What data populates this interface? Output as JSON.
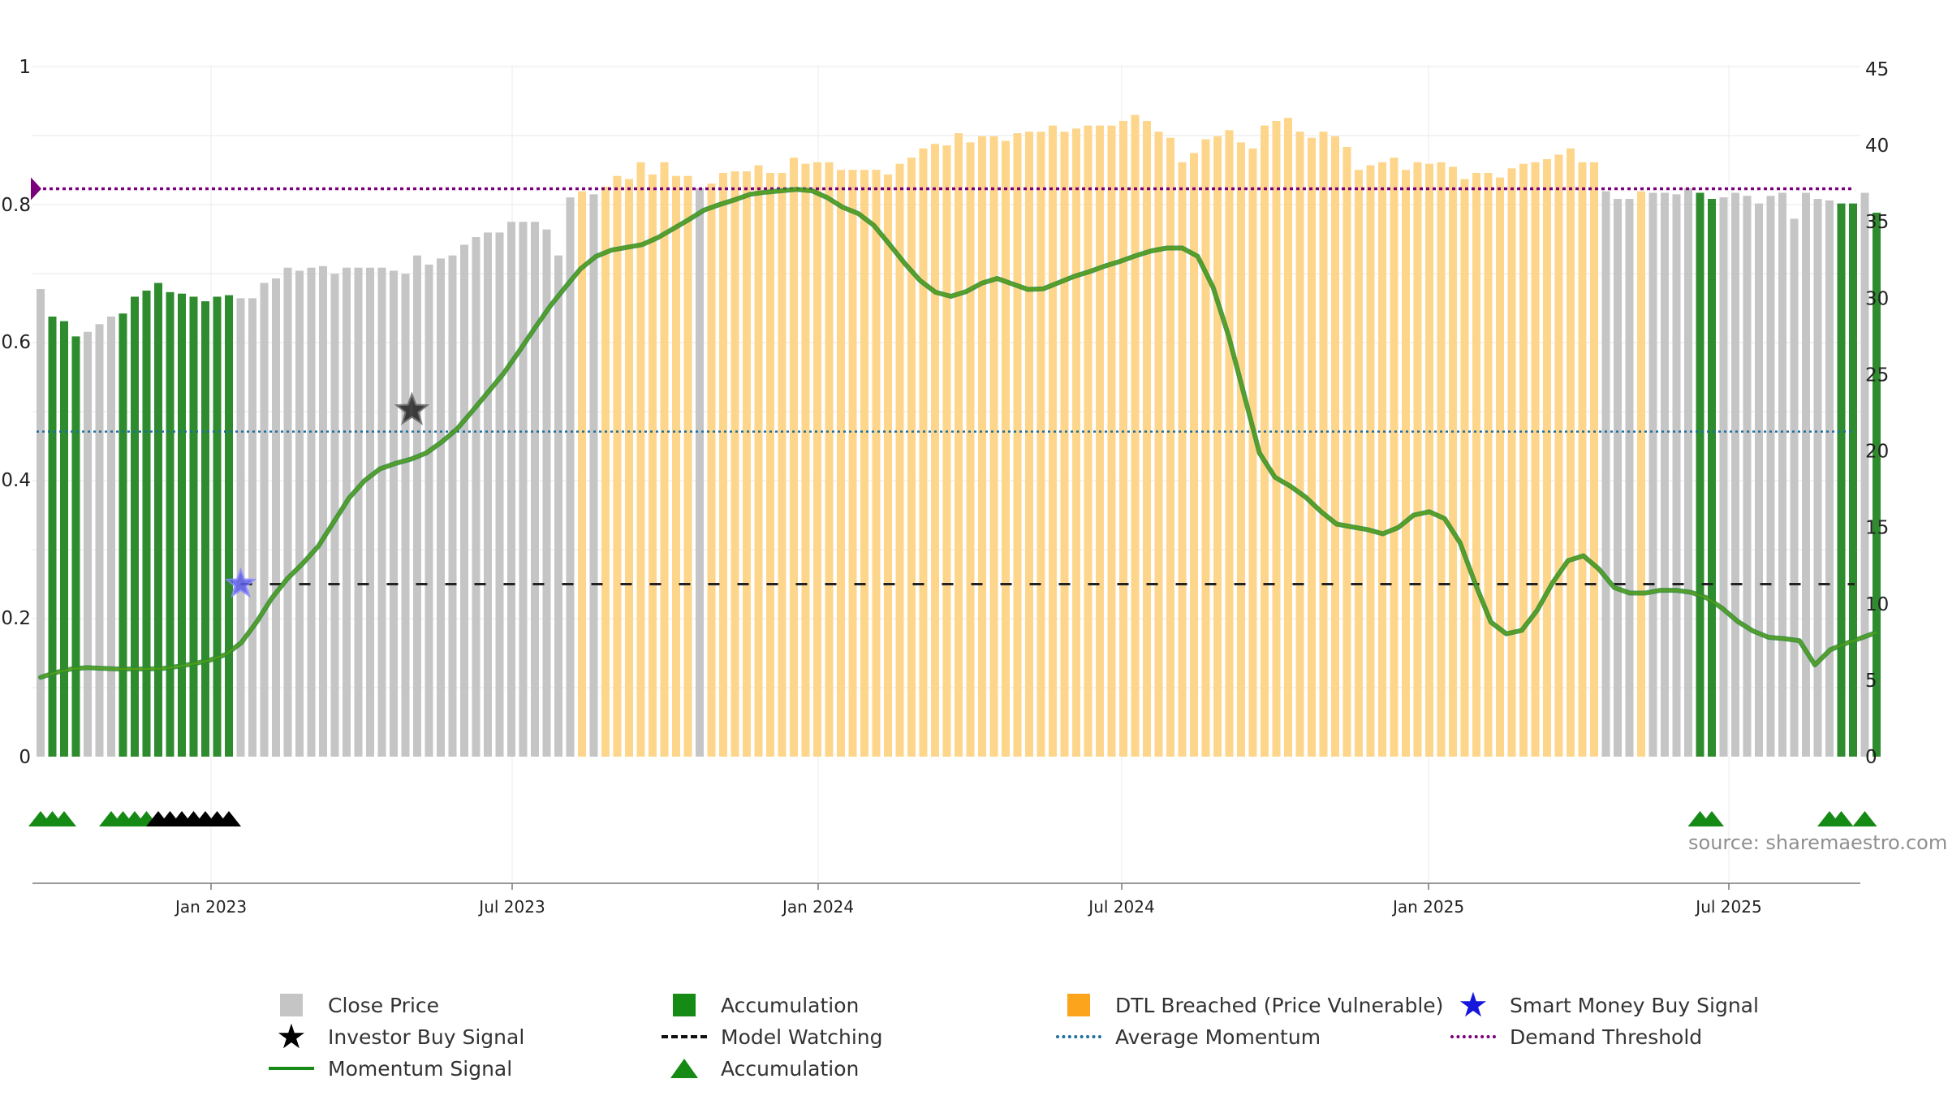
{
  "chart_data": {
    "type": "bar",
    "title": "",
    "source": "source: sharemaestro.com",
    "left_axis": {
      "ticks": [
        "1",
        "0.8",
        "0.6",
        "0.4",
        "0.2",
        "0"
      ],
      "range": [
        0,
        1
      ]
    },
    "right_axis": {
      "ticks": [
        "45",
        "40",
        "35",
        "30",
        "25",
        "20",
        "15",
        "10",
        "5",
        "0"
      ],
      "range": [
        0,
        45
      ]
    },
    "x_axis": {
      "ticks": [
        "Jan 2023",
        "Jul 2023",
        "Jan 2024",
        "Jul 2024",
        "Jan 2025",
        "Jul 2025"
      ]
    },
    "bar_colors": {
      "C": "#c5c5c5",
      "A": "#2e8b2e",
      "D": "#fdd68c"
    },
    "price_series": [
      [
        30.6,
        "C"
      ],
      [
        28.8,
        "A"
      ],
      [
        28.5,
        "A"
      ],
      [
        27.5,
        "A"
      ],
      [
        27.8,
        "C"
      ],
      [
        28.3,
        "C"
      ],
      [
        28.8,
        "C"
      ],
      [
        29,
        "A"
      ],
      [
        30.1,
        "A"
      ],
      [
        30.5,
        "A"
      ],
      [
        31,
        "A"
      ],
      [
        30.4,
        "A"
      ],
      [
        30.3,
        "A"
      ],
      [
        30.1,
        "A"
      ],
      [
        29.8,
        "A"
      ],
      [
        30.1,
        "A"
      ],
      [
        30.2,
        "A"
      ],
      [
        30,
        "C"
      ],
      [
        30,
        "C"
      ],
      [
        31,
        "C"
      ],
      [
        31.3,
        "C"
      ],
      [
        32,
        "C"
      ],
      [
        31.8,
        "C"
      ],
      [
        32,
        "C"
      ],
      [
        32.1,
        "C"
      ],
      [
        31.6,
        "C"
      ],
      [
        32,
        "C"
      ],
      [
        32,
        "C"
      ],
      [
        32,
        "C"
      ],
      [
        32,
        "C"
      ],
      [
        31.8,
        "C"
      ],
      [
        31.6,
        "C"
      ],
      [
        32.8,
        "C"
      ],
      [
        32.2,
        "C"
      ],
      [
        32.6,
        "C"
      ],
      [
        32.8,
        "C"
      ],
      [
        33.5,
        "C"
      ],
      [
        34,
        "C"
      ],
      [
        34.3,
        "C"
      ],
      [
        34.3,
        "C"
      ],
      [
        35,
        "C"
      ],
      [
        35,
        "C"
      ],
      [
        35,
        "C"
      ],
      [
        34.5,
        "C"
      ],
      [
        32.8,
        "C"
      ],
      [
        36.6,
        "C"
      ],
      [
        37,
        "D"
      ],
      [
        36.8,
        "C"
      ],
      [
        37.3,
        "D"
      ],
      [
        38,
        "D"
      ],
      [
        37.8,
        "D"
      ],
      [
        38.9,
        "D"
      ],
      [
        38.1,
        "D"
      ],
      [
        38.9,
        "D"
      ],
      [
        38,
        "D"
      ],
      [
        38,
        "D"
      ],
      [
        37.2,
        "C"
      ],
      [
        37.5,
        "D"
      ],
      [
        38.2,
        "D"
      ],
      [
        38.3,
        "D"
      ],
      [
        38.3,
        "D"
      ],
      [
        38.7,
        "D"
      ],
      [
        38.2,
        "D"
      ],
      [
        38.2,
        "D"
      ],
      [
        39.2,
        "D"
      ],
      [
        38.8,
        "D"
      ],
      [
        38.9,
        "D"
      ],
      [
        38.9,
        "D"
      ],
      [
        38.4,
        "D"
      ],
      [
        38.4,
        "D"
      ],
      [
        38.4,
        "D"
      ],
      [
        38.4,
        "D"
      ],
      [
        38.1,
        "D"
      ],
      [
        38.8,
        "D"
      ],
      [
        39.2,
        "D"
      ],
      [
        39.8,
        "D"
      ],
      [
        40.1,
        "D"
      ],
      [
        40,
        "D"
      ],
      [
        40.8,
        "D"
      ],
      [
        40.2,
        "D"
      ],
      [
        40.6,
        "D"
      ],
      [
        40.6,
        "D"
      ],
      [
        40.3,
        "D"
      ],
      [
        40.8,
        "D"
      ],
      [
        40.9,
        "D"
      ],
      [
        40.9,
        "D"
      ],
      [
        41.3,
        "D"
      ],
      [
        40.9,
        "D"
      ],
      [
        41.1,
        "D"
      ],
      [
        41.3,
        "D"
      ],
      [
        41.3,
        "D"
      ],
      [
        41.3,
        "D"
      ],
      [
        41.6,
        "D"
      ],
      [
        42,
        "D"
      ],
      [
        41.6,
        "D"
      ],
      [
        40.9,
        "D"
      ],
      [
        40.5,
        "D"
      ],
      [
        38.9,
        "D"
      ],
      [
        39.5,
        "D"
      ],
      [
        40.4,
        "D"
      ],
      [
        40.6,
        "D"
      ],
      [
        41,
        "D"
      ],
      [
        40.2,
        "D"
      ],
      [
        39.8,
        "D"
      ],
      [
        41.3,
        "D"
      ],
      [
        41.6,
        "D"
      ],
      [
        41.8,
        "D"
      ],
      [
        40.9,
        "D"
      ],
      [
        40.5,
        "D"
      ],
      [
        40.9,
        "D"
      ],
      [
        40.6,
        "D"
      ],
      [
        39.9,
        "D"
      ],
      [
        38.4,
        "D"
      ],
      [
        38.7,
        "D"
      ],
      [
        38.9,
        "D"
      ],
      [
        39.2,
        "D"
      ],
      [
        38.4,
        "D"
      ],
      [
        38.9,
        "D"
      ],
      [
        38.8,
        "D"
      ],
      [
        38.9,
        "D"
      ],
      [
        38.6,
        "D"
      ],
      [
        37.8,
        "D"
      ],
      [
        38.2,
        "D"
      ],
      [
        38.2,
        "D"
      ],
      [
        37.9,
        "D"
      ],
      [
        38.5,
        "D"
      ],
      [
        38.8,
        "D"
      ],
      [
        38.9,
        "D"
      ],
      [
        39.1,
        "D"
      ],
      [
        39.4,
        "D"
      ],
      [
        39.8,
        "D"
      ],
      [
        38.9,
        "D"
      ],
      [
        38.9,
        "D"
      ],
      [
        37,
        "C"
      ],
      [
        36.5,
        "C"
      ],
      [
        36.5,
        "C"
      ],
      [
        37,
        "D"
      ],
      [
        36.9,
        "C"
      ],
      [
        36.9,
        "C"
      ],
      [
        36.8,
        "C"
      ],
      [
        37.2,
        "C"
      ],
      [
        36.9,
        "A"
      ],
      [
        36.5,
        "A"
      ],
      [
        36.6,
        "C"
      ],
      [
        36.9,
        "C"
      ],
      [
        36.7,
        "C"
      ],
      [
        36.2,
        "C"
      ],
      [
        36.7,
        "C"
      ],
      [
        36.9,
        "C"
      ],
      [
        35.2,
        "C"
      ],
      [
        36.9,
        "C"
      ],
      [
        36.5,
        "C"
      ],
      [
        36.4,
        "C"
      ],
      [
        36.2,
        "A"
      ],
      [
        36.2,
        "A"
      ],
      [
        36.9,
        "C"
      ],
      [
        35.6,
        "A"
      ]
    ],
    "momentum_series": [
      0.115,
      0.122,
      0.127,
      0.129,
      0.128,
      0.127,
      0.127,
      0.127,
      0.128,
      0.131,
      0.135,
      0.14,
      0.148,
      0.165,
      0.195,
      0.23,
      0.258,
      0.28,
      0.305,
      0.34,
      0.375,
      0.4,
      0.417,
      0.425,
      0.431,
      0.44,
      0.456,
      0.475,
      0.501,
      0.528,
      0.555,
      0.587,
      0.62,
      0.652,
      0.68,
      0.707,
      0.725,
      0.734,
      0.738,
      0.742,
      0.752,
      0.765,
      0.778,
      0.792,
      0.8,
      0.807,
      0.815,
      0.818,
      0.82,
      0.822,
      0.82,
      0.81,
      0.796,
      0.787,
      0.77,
      0.743,
      0.715,
      0.69,
      0.673,
      0.667,
      0.674,
      0.686,
      0.693,
      0.685,
      0.677,
      0.678,
      0.687,
      0.696,
      0.703,
      0.711,
      0.718,
      0.726,
      0.733,
      0.737,
      0.737,
      0.725,
      0.68,
      0.61,
      0.525,
      0.44,
      0.405,
      0.392,
      0.376,
      0.355,
      0.337,
      0.333,
      0.329,
      0.323,
      0.332,
      0.35,
      0.355,
      0.345,
      0.31,
      0.25,
      0.195,
      0.178,
      0.183,
      0.212,
      0.252,
      0.284,
      0.291,
      0.272,
      0.245,
      0.237,
      0.237,
      0.241,
      0.241,
      0.238,
      0.23,
      0.215,
      0.196,
      0.182,
      0.173,
      0.171,
      0.168,
      0.133,
      0.155,
      0.164,
      0.172,
      0.18
    ],
    "investor_buy_signal": {
      "x_index": 31,
      "y": 0.502
    },
    "smart_money_buy_signal": {
      "x_index": 17,
      "y": 0.25
    },
    "demand_threshold": {
      "value": 0.823,
      "color": "#7b007b"
    },
    "average_momentum": {
      "value": 0.471,
      "color": "#1f6f9f"
    },
    "model_watching": {
      "value": 0.25,
      "start_x_index": 17
    },
    "accumulation_triangles": [
      [
        0,
        "A"
      ],
      [
        1,
        "A"
      ],
      [
        2,
        "A"
      ],
      [
        6,
        "A"
      ],
      [
        7,
        "A"
      ],
      [
        8,
        "A"
      ],
      [
        9,
        "A"
      ],
      [
        10,
        "K"
      ],
      [
        11,
        "K"
      ],
      [
        12,
        "K"
      ],
      [
        13,
        "K"
      ],
      [
        14,
        "K"
      ],
      [
        15,
        "K"
      ],
      [
        16,
        "K"
      ],
      [
        141,
        "A"
      ],
      [
        142,
        "A"
      ],
      [
        152,
        "A"
      ],
      [
        153,
        "A"
      ],
      [
        155,
        "A"
      ]
    ],
    "momentum_color": "#2e8b2e",
    "momentum_highlight_color": "#66aa00",
    "legend": {
      "close_price": "Close Price",
      "accumulation": "Accumulation",
      "dtl_breached": "DTL Breached (Price Vulnerable)",
      "smart_money": "Smart Money Buy Signal",
      "investor_buy": "Investor Buy Signal",
      "model_watching": "Model Watching",
      "average_momentum": "Average Momentum",
      "demand_threshold": "Demand Threshold",
      "momentum_signal": "Momentum Signal",
      "accumulation_triangle": "Accumulation"
    }
  }
}
